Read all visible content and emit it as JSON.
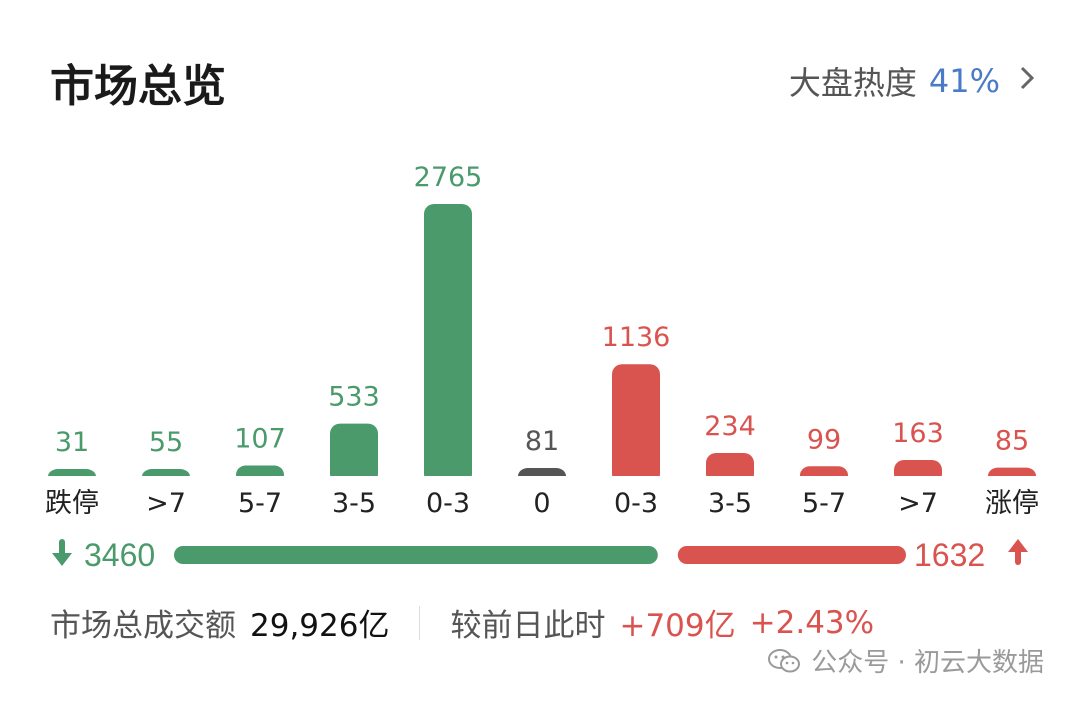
{
  "header": {
    "title": "市场总览",
    "heat_label": "大盘热度",
    "heat_value": "41%",
    "chevron_icon": "chevron-right-icon"
  },
  "colors": {
    "down": "#4a9a6c",
    "up": "#d9534f",
    "neutral": "#555555",
    "heat": "#4a7bc8"
  },
  "chart_data": {
    "type": "bar",
    "categories": [
      "跌停",
      ">7",
      "5-7",
      "3-5",
      "0-3",
      "0",
      "0-3",
      "3-5",
      "5-7",
      ">7",
      "涨停"
    ],
    "values": [
      31,
      55,
      107,
      533,
      2765,
      81,
      1136,
      234,
      99,
      163,
      85
    ],
    "bar_colors": [
      "down",
      "down",
      "down",
      "down",
      "down",
      "neutral",
      "up",
      "up",
      "up",
      "up",
      "up"
    ],
    "title": "",
    "xlabel": "",
    "ylabel": "",
    "grid": false
  },
  "breadth": {
    "down_count": "3460",
    "up_count": "1632",
    "down_icon": "arrow-down-icon",
    "up_icon": "arrow-up-icon"
  },
  "summary": {
    "turnover_label": "市场总成交额",
    "turnover_value": "29,926亿",
    "compare_label": "较前日此时",
    "compare_abs": "+709亿",
    "compare_pct": "+2.43%"
  },
  "watermark": {
    "text": "公众号 · 初云大数据",
    "icon": "wechat-icon"
  }
}
